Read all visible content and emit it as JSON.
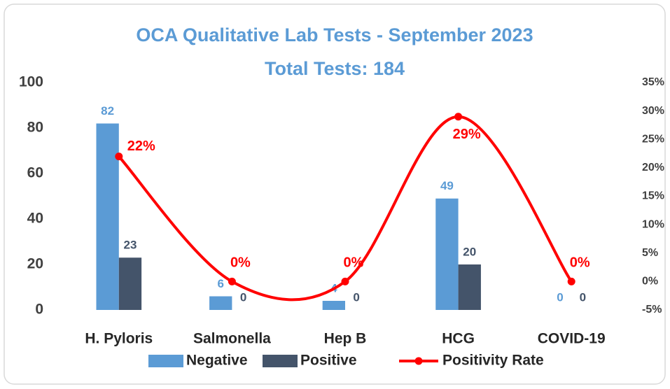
{
  "chart_data": {
    "type": "bar",
    "title": "OCA Qualitative Lab Tests - September 2023",
    "subtitle": "Total Tests: 184",
    "categories": [
      "H. Pyloris",
      "Salmonella",
      "Hep B",
      "HCG",
      "COVID-19"
    ],
    "series": [
      {
        "name": "Negative",
        "color": "#5b9bd5",
        "values": [
          82,
          6,
          4,
          49,
          0
        ]
      },
      {
        "name": "Positive",
        "color": "#44546a",
        "values": [
          23,
          0,
          0,
          20,
          0
        ]
      },
      {
        "name": "Positivity Rate",
        "color": "#ff0000",
        "type": "line",
        "axis": "y2",
        "smooth": true,
        "values": [
          22,
          0,
          0,
          29,
          0
        ],
        "value_labels": [
          "22%",
          "0%",
          "0%",
          "29%",
          "0%"
        ]
      }
    ],
    "ylim": [
      0,
      100
    ],
    "yticks": [
      0,
      20,
      40,
      60,
      80,
      100
    ],
    "y2lim": [
      -5,
      35
    ],
    "y2ticks": [
      {
        "value": -5,
        "label": "-5%"
      },
      {
        "value": 0,
        "label": "0%"
      },
      {
        "value": 5,
        "label": "5%"
      },
      {
        "value": 10,
        "label": "10%"
      },
      {
        "value": 15,
        "label": "15%"
      },
      {
        "value": 20,
        "label": "20%"
      },
      {
        "value": 25,
        "label": "25%"
      },
      {
        "value": 30,
        "label": "30%"
      },
      {
        "value": 35,
        "label": "35%"
      }
    ],
    "grid": false,
    "legend": "bottom"
  }
}
